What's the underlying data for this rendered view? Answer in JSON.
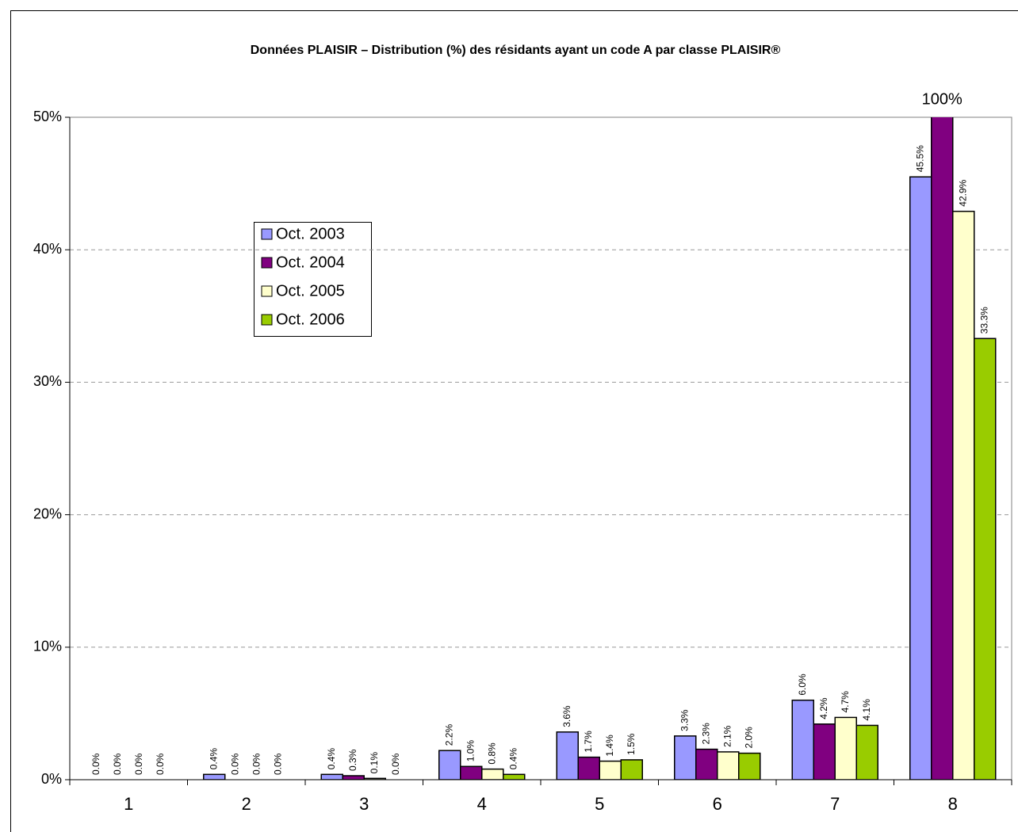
{
  "chart_data": {
    "type": "bar",
    "title": "Données PLAISIR – Distribution (%) des résidants ayant un code A par classe PLAISIR®",
    "categories": [
      "1",
      "2",
      "3",
      "4",
      "5",
      "6",
      "7",
      "8"
    ],
    "series": [
      {
        "name": "Oct. 2003",
        "color": "#9999ff",
        "values": [
          0.0,
          0.4,
          0.4,
          2.2,
          3.6,
          3.3,
          6.0,
          45.5
        ],
        "value_labels": [
          "0.0%",
          "0.4%",
          "0.4%",
          "2.2%",
          "3.6%",
          "3.3%",
          "6.0%",
          "45.5%"
        ]
      },
      {
        "name": "Oct. 2004",
        "color": "#800080",
        "values": [
          0.0,
          0.0,
          0.3,
          1.0,
          1.7,
          2.3,
          4.2,
          100
        ],
        "value_labels": [
          "0.0%",
          "0.0%",
          "0.3%",
          "1.0%",
          "1.7%",
          "2.3%",
          "4.2%",
          "100%"
        ]
      },
      {
        "name": "Oct. 2005",
        "color": "#ffffcc",
        "values": [
          0.0,
          0.0,
          0.1,
          0.8,
          1.4,
          2.1,
          4.7,
          42.9
        ],
        "value_labels": [
          "0.0%",
          "0.0%",
          "0.1%",
          "0.8%",
          "1.4%",
          "2.1%",
          "4.7%",
          "42.9%"
        ]
      },
      {
        "name": "Oct. 2006",
        "color": "#99cc00",
        "values": [
          0.0,
          0.0,
          0.0,
          0.4,
          1.5,
          2.0,
          4.1,
          33.3
        ],
        "value_labels": [
          "0.0%",
          "0.0%",
          "0.0%",
          "0.4%",
          "1.5%",
          "2.0%",
          "4.1%",
          "33.3%"
        ]
      }
    ],
    "ylim": [
      0,
      50
    ],
    "yticks": [
      {
        "value": 0,
        "label": "0%"
      },
      {
        "value": 10,
        "label": "10%"
      },
      {
        "value": 20,
        "label": "20%"
      },
      {
        "value": 30,
        "label": "30%"
      },
      {
        "value": 40,
        "label": "40%"
      },
      {
        "value": 50,
        "label": "50%"
      }
    ],
    "grid": true
  }
}
